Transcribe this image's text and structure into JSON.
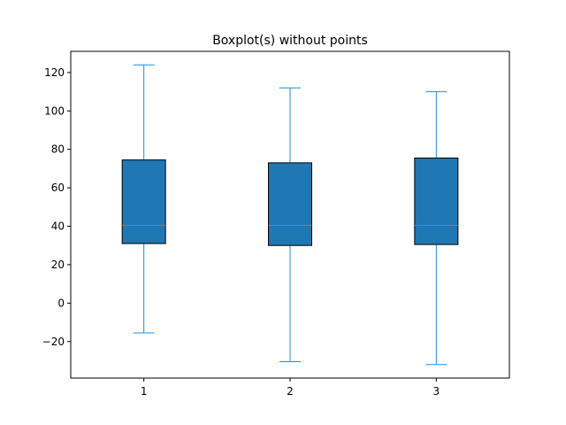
{
  "chart_data": {
    "type": "boxplot",
    "title": "Boxplot(s) without points",
    "xlabel": "",
    "ylabel": "",
    "categories": [
      "1",
      "2",
      "3"
    ],
    "ylim": [
      -39,
      131
    ],
    "yticks": [
      -20,
      0,
      20,
      40,
      60,
      80,
      100,
      120
    ],
    "ytick_labels": [
      "−20",
      "0",
      "20",
      "40",
      "60",
      "80",
      "100",
      "120"
    ],
    "grid": false,
    "boxes": [
      {
        "whisker_low": -15.5,
        "q1": 31,
        "median": 40.5,
        "q3": 74.5,
        "whisker_high": 124
      },
      {
        "whisker_low": -30.5,
        "q1": 30,
        "median": 40.5,
        "q3": 73,
        "whisker_high": 112
      },
      {
        "whisker_low": -32,
        "q1": 30.5,
        "median": 40.5,
        "q3": 75.5,
        "whisker_high": 110
      }
    ],
    "colors": {
      "box_fill": "#1f77b4",
      "box_edge": "#000000",
      "whisker": "#1f8fe0",
      "median": "#808080"
    }
  }
}
